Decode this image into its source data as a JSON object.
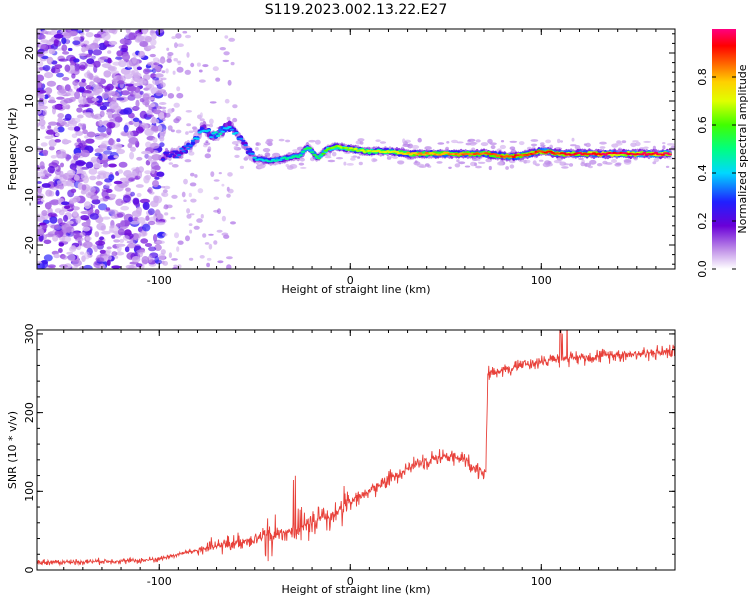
{
  "title": "S119.2023.002.13.22.E27",
  "chart_data": [
    {
      "type": "heatmap",
      "title": "S119.2023.002.13.22.E27",
      "xlabel": "Height of straight line (km)",
      "ylabel": "Frequency (Hz)",
      "xlim": [
        -164,
        170
      ],
      "ylim": [
        -25,
        25
      ],
      "x_ticks": [
        -100,
        0,
        100
      ],
      "y_ticks": [
        -20,
        -10,
        0,
        10,
        20
      ],
      "colorbar": {
        "label": "Normalized spectral amplitude",
        "range": [
          0,
          1
        ],
        "ticks": [
          0.0,
          0.2,
          0.4,
          0.6,
          0.8
        ],
        "tick_labels": [
          "0.0",
          "0.2",
          "0.4",
          "0.6",
          "0.8"
        ]
      },
      "noise_region_x": [
        -164,
        -98
      ],
      "sparse_region_x": [
        -98,
        -60
      ],
      "signal_track": [
        {
          "x": -98,
          "f": -1.5,
          "a": 0.25
        },
        {
          "x": -90,
          "f": -1.0,
          "a": 0.3
        },
        {
          "x": -84,
          "f": 0.5,
          "a": 0.35
        },
        {
          "x": -80,
          "f": 2.5,
          "a": 0.4
        },
        {
          "x": -76,
          "f": 4.5,
          "a": 0.38
        },
        {
          "x": -72,
          "f": 2.5,
          "a": 0.42
        },
        {
          "x": -68,
          "f": 3.5,
          "a": 0.45
        },
        {
          "x": -64,
          "f": 5.0,
          "a": 0.4
        },
        {
          "x": -58,
          "f": 2.5,
          "a": 0.35
        },
        {
          "x": -55,
          "f": 0.5,
          "a": 0.3
        },
        {
          "x": -50,
          "f": -2.0,
          "a": 0.4
        },
        {
          "x": -42,
          "f": -2.5,
          "a": 0.45
        },
        {
          "x": -35,
          "f": -2.0,
          "a": 0.45
        },
        {
          "x": -27,
          "f": -1.5,
          "a": 0.5
        },
        {
          "x": -22,
          "f": 0.5,
          "a": 0.55
        },
        {
          "x": -17,
          "f": -2.0,
          "a": 0.5
        },
        {
          "x": -12,
          "f": 0.0,
          "a": 0.6
        },
        {
          "x": -7,
          "f": 0.5,
          "a": 0.65
        },
        {
          "x": 0,
          "f": 0.0,
          "a": 0.65
        },
        {
          "x": 10,
          "f": -0.5,
          "a": 0.7
        },
        {
          "x": 20,
          "f": -0.5,
          "a": 0.72
        },
        {
          "x": 30,
          "f": -1.0,
          "a": 0.78
        },
        {
          "x": 45,
          "f": -1.0,
          "a": 0.82
        },
        {
          "x": 60,
          "f": -1.0,
          "a": 0.85
        },
        {
          "x": 72,
          "f": -1.0,
          "a": 0.85
        },
        {
          "x": 80,
          "f": -1.5,
          "a": 0.88
        },
        {
          "x": 87,
          "f": -1.5,
          "a": 0.9
        },
        {
          "x": 92,
          "f": -1.2,
          "a": 0.88
        },
        {
          "x": 100,
          "f": -0.5,
          "a": 0.9
        },
        {
          "x": 112,
          "f": -1.0,
          "a": 0.92
        },
        {
          "x": 130,
          "f": -1.0,
          "a": 0.95
        },
        {
          "x": 150,
          "f": -1.0,
          "a": 0.95
        },
        {
          "x": 168,
          "f": -1.0,
          "a": 0.95
        }
      ]
    },
    {
      "type": "line",
      "xlabel": "Height of straight line (km)",
      "ylabel": "SNR (10 * v/v)",
      "xlim": [
        -164,
        170
      ],
      "ylim": [
        0,
        305
      ],
      "x_ticks": [
        -100,
        0,
        100
      ],
      "y_ticks": [
        0,
        100,
        200,
        300
      ],
      "series": [
        {
          "color": "#e8413a",
          "x": [
            -164,
            -150,
            -130,
            -110,
            -100,
            -90,
            -80,
            -70,
            -60,
            -50,
            -40,
            -30,
            -20,
            -10,
            0,
            10,
            20,
            30,
            40,
            50,
            60,
            65,
            70,
            71,
            72,
            80,
            90,
            100,
            110,
            120,
            130,
            140,
            150,
            160,
            170
          ],
          "y": [
            10,
            10,
            11,
            12,
            14,
            20,
            25,
            30,
            35,
            40,
            45,
            50,
            60,
            70,
            85,
            100,
            115,
            130,
            140,
            145,
            140,
            130,
            125,
            125,
            250,
            255,
            260,
            265,
            268,
            270,
            272,
            274,
            275,
            276,
            278
          ]
        }
      ]
    }
  ]
}
